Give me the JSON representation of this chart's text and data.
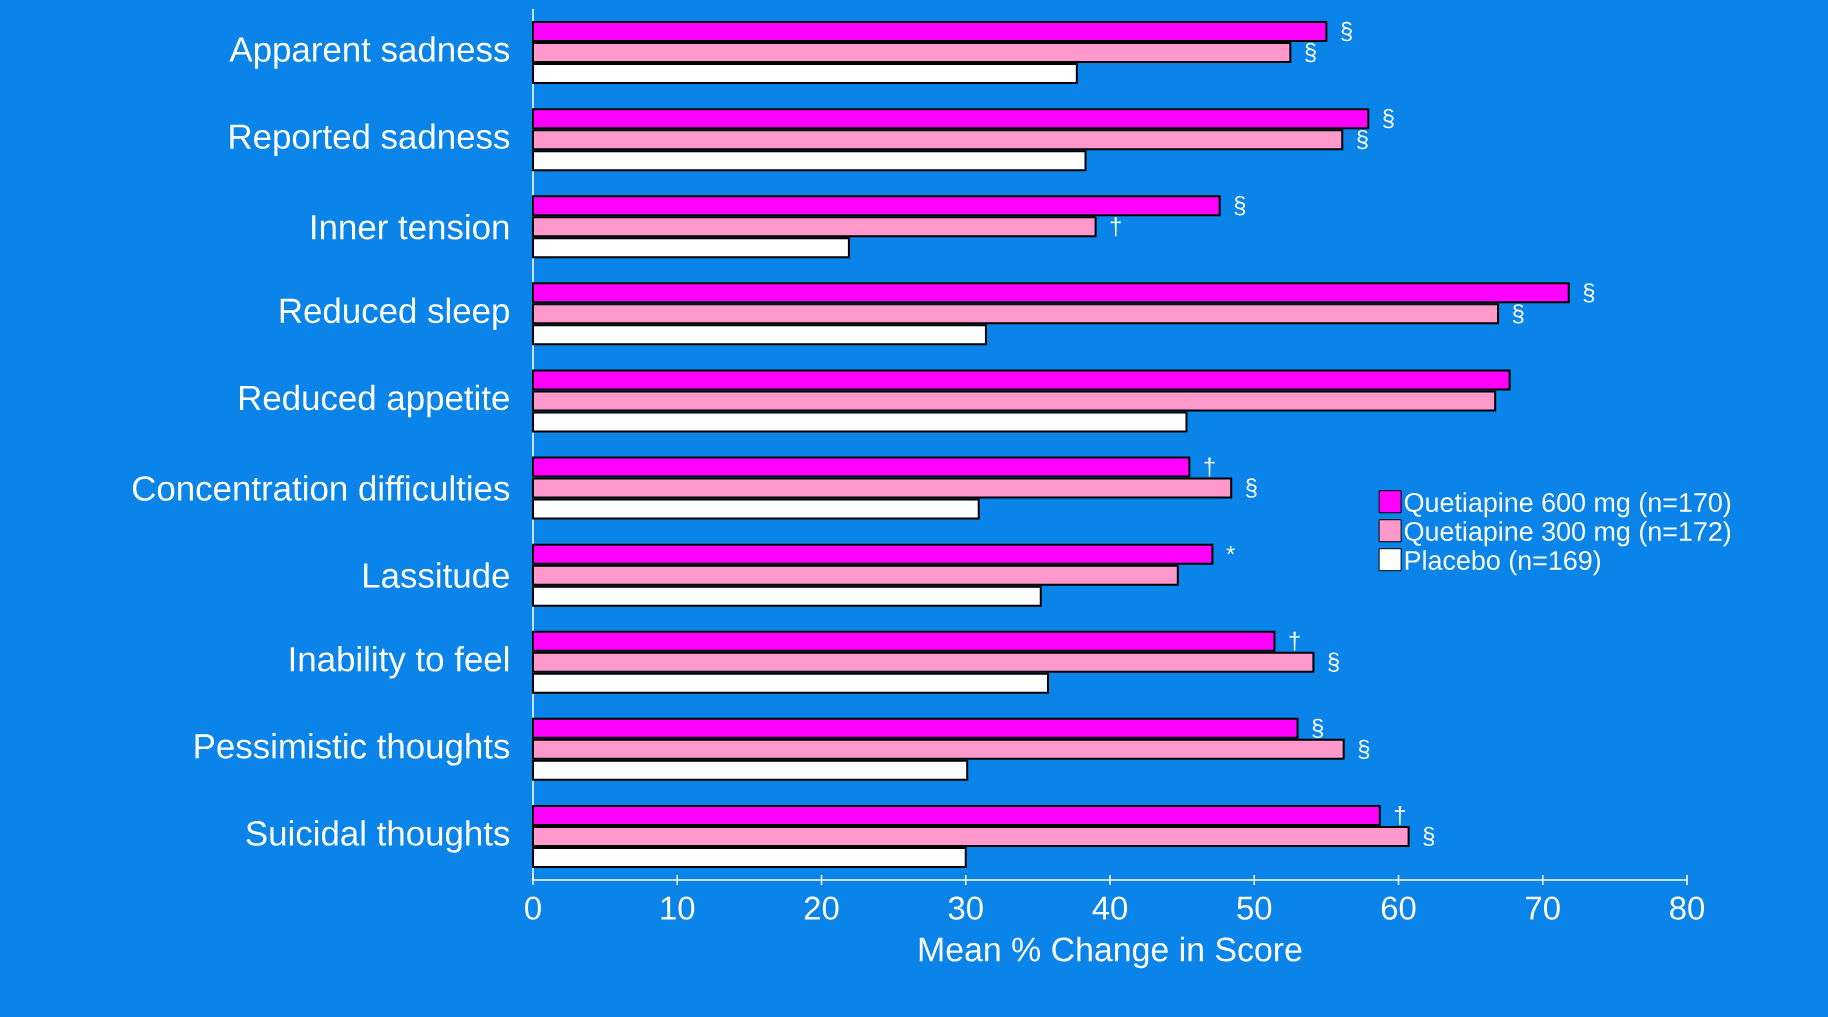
{
  "chart_data": {
    "type": "bar",
    "orientation": "horizontal",
    "xlabel": "Mean % Change in Score",
    "categories": [
      "Apparent sadness",
      "Reported sadness",
      "Inner tension",
      "Reduced sleep",
      "Reduced appetite",
      "Concentration difficulties",
      "Lassitude",
      "Inability to feel",
      "Pessimistic thoughts",
      "Suicidal thoughts"
    ],
    "series": [
      {
        "name": "Quetiapine 600 mg (n=170)",
        "color": "#ff00ff",
        "values": [
          55,
          57.9,
          47.6,
          71.8,
          67.7,
          45.5,
          47.1,
          51.4,
          53,
          58.7
        ],
        "value_labels": [
          "§",
          "§",
          "§",
          "§",
          null,
          "†",
          "*",
          "†",
          "§",
          "†"
        ]
      },
      {
        "name": "Quetiapine 300 mg (n=172)",
        "color": "#ff99cc",
        "values": [
          52.5,
          56.1,
          39,
          66.9,
          66.7,
          48.4,
          44.7,
          54.1,
          56.2,
          60.7
        ],
        "value_labels": [
          "§",
          "§",
          "†",
          "§",
          null,
          "§",
          null,
          "§",
          "§",
          "§"
        ]
      },
      {
        "name": "Placebo (n=169)",
        "color": "#ffffff",
        "values": [
          37.7,
          38.3,
          21.9,
          31.4,
          45.3,
          30.9,
          35.2,
          35.7,
          30.1,
          30
        ]
      }
    ],
    "xlim": [
      0,
      80
    ],
    "xticks": [
      0,
      10,
      20,
      30,
      40,
      50,
      60,
      70,
      80
    ],
    "legend": "right"
  }
}
